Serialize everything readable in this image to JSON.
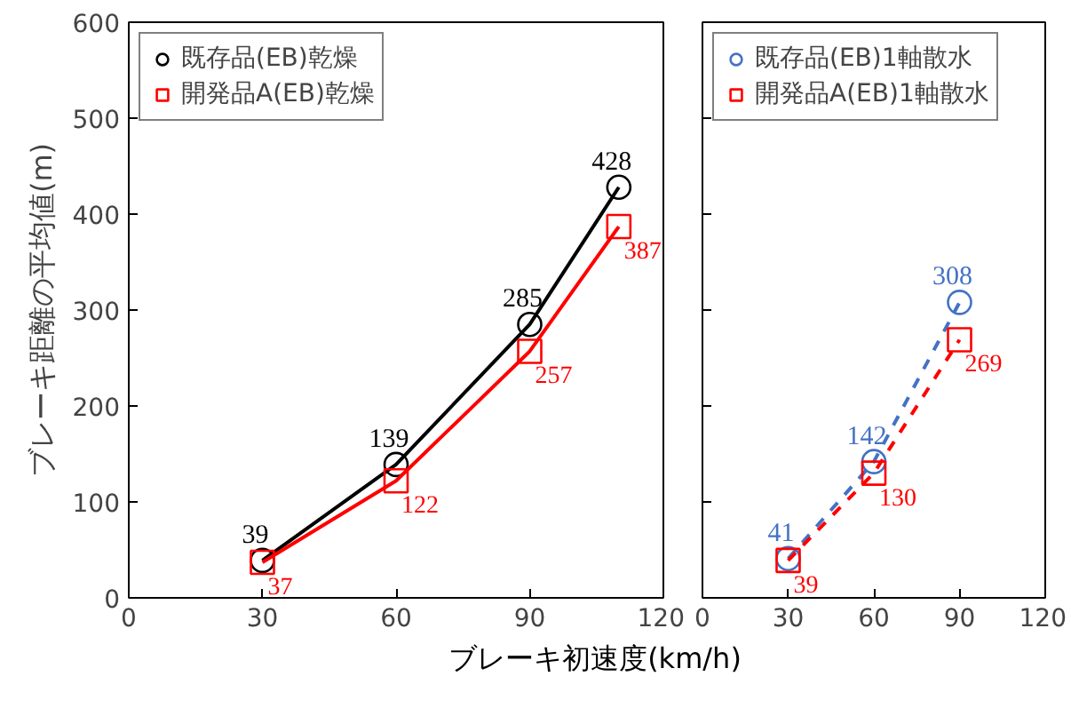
{
  "chart_data": [
    {
      "type": "line",
      "ylabel": "ブレーキ距離の平均値(m)",
      "xlabel": "ブレーキ初速度(km/h)",
      "xlim": [
        0,
        120
      ],
      "xticks": [
        0,
        30,
        60,
        90,
        120
      ],
      "ylim": [
        0,
        600
      ],
      "yticks": [
        0,
        100,
        200,
        300,
        400,
        500,
        600
      ],
      "legend": "top left",
      "data_labels": true,
      "series": [
        {
          "name": "既存品(EB)乾燥",
          "color": "#000000",
          "marker": "circle",
          "line_style": "solid",
          "x": [
            30,
            60,
            90,
            110
          ],
          "values": [
            39,
            139,
            285,
            428
          ]
        },
        {
          "name": "開発品A(EB)乾燥",
          "color": "#ff0000",
          "marker": "square",
          "line_style": "solid",
          "x": [
            30,
            60,
            90,
            110
          ],
          "values": [
            37,
            122,
            257,
            387
          ]
        }
      ]
    },
    {
      "type": "line",
      "xlim": [
        0,
        120
      ],
      "xticks": [
        0,
        30,
        60,
        90,
        120
      ],
      "ylim": [
        0,
        600
      ],
      "yticks": [
        0,
        100,
        200,
        300,
        400,
        500,
        600
      ],
      "tick_labels": "x",
      "legend": "top left",
      "data_labels": true,
      "series": [
        {
          "name": "既存品(EB)1軸散水",
          "color": "#4472c4",
          "marker": "circle",
          "line_style": "dashed",
          "x": [
            30,
            60,
            90
          ],
          "values": [
            41,
            142,
            308
          ]
        },
        {
          "name": "開発品A(EB)1軸散水",
          "color": "#ff0000",
          "marker": "square",
          "line_style": "dashed",
          "x": [
            30,
            60,
            90
          ],
          "values": [
            39,
            130,
            269
          ]
        }
      ]
    }
  ]
}
